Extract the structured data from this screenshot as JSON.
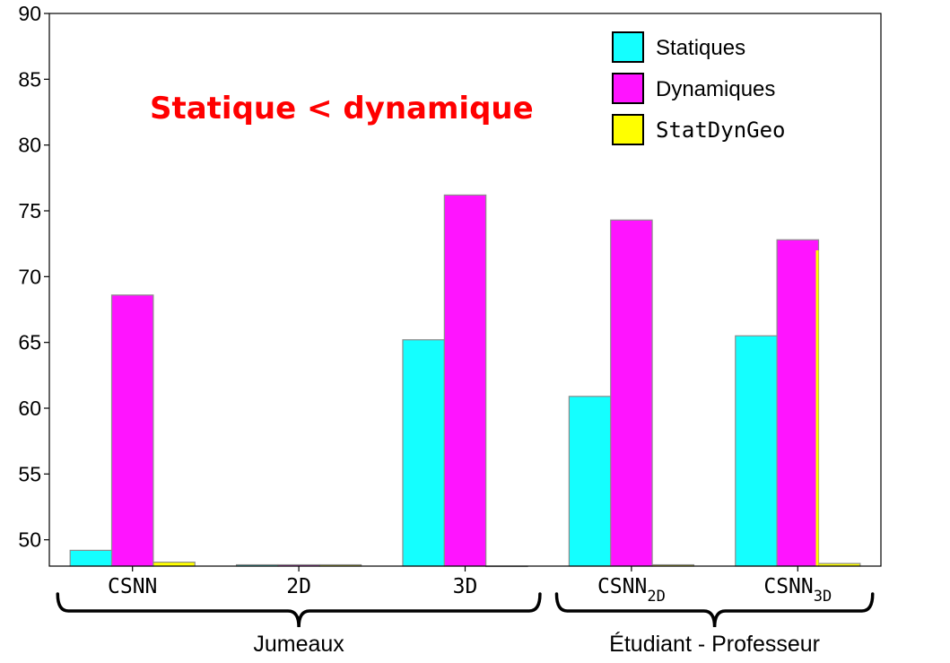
{
  "chart_data": {
    "type": "bar",
    "categories": [
      {
        "main": "CSNN",
        "sub": ""
      },
      {
        "main": "2D",
        "sub": ""
      },
      {
        "main": "3D",
        "sub": ""
      },
      {
        "main": "CSNN",
        "sub": "2D"
      },
      {
        "main": "CSNN",
        "sub": "3D"
      }
    ],
    "series": [
      {
        "name": "Statiques",
        "color": "#14ffff",
        "values": [
          49.2,
          48.1,
          65.2,
          60.9,
          65.5
        ]
      },
      {
        "name": "Dynamiques",
        "color": "#ff14ff",
        "values": [
          68.6,
          48.1,
          76.2,
          74.3,
          72.8
        ]
      },
      {
        "name": "StatDynGeo",
        "color": "#ffff00",
        "values": [
          48.3,
          48.1,
          48.0,
          48.1,
          48.2
        ]
      }
    ],
    "overlay": {
      "category_index": 4,
      "value": 72.0,
      "color": "#ffff00"
    },
    "ylim": [
      48,
      90
    ],
    "yticks": [
      "50",
      "55",
      "60",
      "65",
      "70",
      "75",
      "80",
      "85",
      "90"
    ],
    "legend_position": "top-right",
    "annotation": "Statique < dynamique",
    "groups": [
      {
        "label": "Jumeaux",
        "first": 0,
        "last": 2
      },
      {
        "label": "Étudiant - Professeur",
        "first": 3,
        "last": 4
      }
    ]
  }
}
